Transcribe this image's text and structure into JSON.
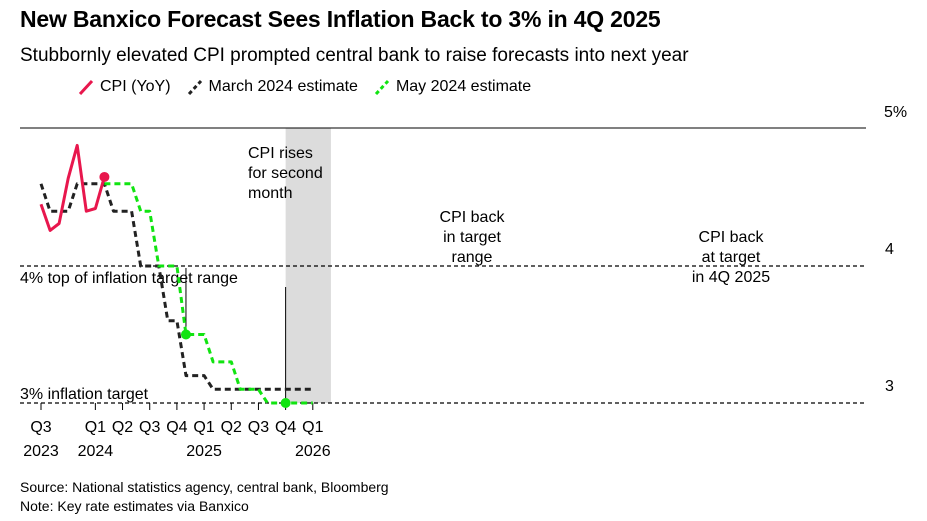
{
  "title": "New Banxico Forecast Sees Inflation Back to 3% in 4Q 2025",
  "subtitle": "Stubbornly elevated CPI prompted central bank to raise forecasts into next year",
  "source": "Source: National statistics agency, central bank, Bloomberg",
  "note": "Note: Key rate estimates via Banxico",
  "colors": {
    "cpi": "#e8174d",
    "march": "#222222",
    "may": "#11e411",
    "shade": "#dcdcdc",
    "grid": "#000000"
  },
  "chart_data": {
    "type": "line",
    "title": "New Banxico Forecast Sees Inflation Back to 3% in 4Q 2025",
    "ylim": [
      3,
      5
    ],
    "yticks": [
      {
        "value": 5,
        "label": "5%"
      },
      {
        "value": 4,
        "label": "4"
      },
      {
        "value": 3,
        "label": "3"
      }
    ],
    "xticks": [
      {
        "label": "Q3",
        "year": "2023",
        "t": 0
      },
      {
        "label": "Q1",
        "year": "2024",
        "t": 6
      },
      {
        "label": "Q2",
        "year": "",
        "t": 9
      },
      {
        "label": "Q3",
        "year": "",
        "t": 12
      },
      {
        "label": "Q4",
        "year": "",
        "t": 15
      },
      {
        "label": "Q1",
        "year": "2025",
        "t": 18
      },
      {
        "label": "Q2",
        "year": "",
        "t": 21
      },
      {
        "label": "Q3",
        "year": "",
        "t": 24
      },
      {
        "label": "Q4",
        "year": "",
        "t": 27
      },
      {
        "label": "Q1",
        "year": "2026",
        "t": 30
      }
    ],
    "legend_placement": "top-left",
    "series": [
      {
        "name": "CPI (YoY)",
        "style": "solid",
        "points": [
          [
            0,
            4.45
          ],
          [
            1,
            4.26
          ],
          [
            2,
            4.31
          ],
          [
            3,
            4.64
          ],
          [
            4,
            4.88
          ],
          [
            5,
            4.4
          ],
          [
            6,
            4.42
          ],
          [
            7,
            4.65
          ]
        ]
      },
      {
        "name": "March 2024 estimate",
        "style": "dashed",
        "points": [
          [
            0,
            4.6
          ],
          [
            1,
            4.4
          ],
          [
            3,
            4.4
          ],
          [
            4,
            4.6
          ],
          [
            7,
            4.6
          ],
          [
            8,
            4.4
          ],
          [
            10,
            4.4
          ],
          [
            11,
            4.0
          ],
          [
            12,
            4.0
          ],
          [
            13,
            4.0
          ],
          [
            14,
            3.6
          ],
          [
            15,
            3.6
          ],
          [
            16,
            3.2
          ],
          [
            18,
            3.2
          ],
          [
            19,
            3.1
          ],
          [
            30,
            3.1
          ]
        ]
      },
      {
        "name": "May 2024 estimate",
        "style": "dashed",
        "points": [
          [
            7,
            4.6
          ],
          [
            10,
            4.6
          ],
          [
            11,
            4.4
          ],
          [
            12,
            4.4
          ],
          [
            13,
            4.0
          ],
          [
            15,
            4.0
          ],
          [
            16,
            3.5
          ],
          [
            18,
            3.5
          ],
          [
            19,
            3.3
          ],
          [
            21,
            3.3
          ],
          [
            22,
            3.1
          ],
          [
            24,
            3.1
          ],
          [
            25,
            3.0
          ],
          [
            30,
            3.0
          ]
        ]
      }
    ],
    "shaded_region": {
      "from_t": 27,
      "to_t": 32
    },
    "reference_lines": [
      {
        "value": 4,
        "label": "4% top of inflation target range"
      },
      {
        "value": 3,
        "label": "3% inflation target"
      }
    ],
    "markers": [
      {
        "series": "CPI (YoY)",
        "t": 7,
        "value": 4.65
      },
      {
        "series": "May 2024 estimate",
        "t": 16,
        "value": 3.5
      },
      {
        "series": "May 2024 estimate",
        "t": 27,
        "value": 3.0
      }
    ],
    "annotations": [
      {
        "lines": [
          "CPI rises",
          "for second",
          "month"
        ],
        "t": 7,
        "value": 4.65
      },
      {
        "lines": [
          "CPI back",
          "in target",
          "range"
        ],
        "t": 16,
        "value": 3.5
      },
      {
        "lines": [
          "CPI back",
          "at target",
          "in 4Q 2025"
        ],
        "t": 27,
        "value": 3.0
      }
    ]
  }
}
